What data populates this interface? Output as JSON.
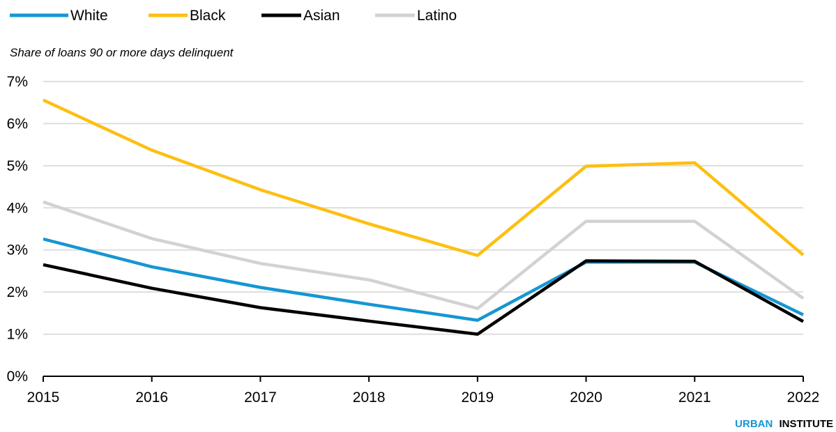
{
  "colors": {
    "White": "#1696d2",
    "Black": "#fdbf11",
    "Asian": "#000000",
    "Latino": "#d2d2d2",
    "grid": "#dedede",
    "axis": "#000000",
    "brand_accent": "#1696d2",
    "brand_text": "#000000"
  },
  "brand": {
    "part1": "URBAN",
    "part2": "INSTITUTE"
  },
  "chart_data": {
    "type": "line",
    "title": "",
    "subtitle": "Share of loans 90 or more days delinquent",
    "xlabel": "",
    "ylabel": "",
    "x": [
      "2015",
      "2016",
      "2017",
      "2018",
      "2019",
      "2020",
      "2021",
      "2022"
    ],
    "ylim": [
      0,
      7
    ],
    "yticks": [
      0,
      1,
      2,
      3,
      4,
      5,
      6,
      7
    ],
    "ytick_labels": [
      "0%",
      "1%",
      "2%",
      "3%",
      "4%",
      "5%",
      "6%",
      "7%"
    ],
    "grid": true,
    "legend_position": "top-left",
    "series": [
      {
        "name": "White",
        "values": [
          3.26,
          2.6,
          2.11,
          1.71,
          1.33,
          2.71,
          2.71,
          1.46
        ]
      },
      {
        "name": "Black",
        "values": [
          6.56,
          5.37,
          4.43,
          3.62,
          2.87,
          4.99,
          5.07,
          2.88
        ]
      },
      {
        "name": "Asian",
        "values": [
          2.65,
          2.09,
          1.63,
          1.31,
          1.0,
          2.74,
          2.73,
          1.3
        ]
      },
      {
        "name": "Latino",
        "values": [
          4.14,
          3.27,
          2.68,
          2.29,
          1.61,
          3.68,
          3.68,
          1.85
        ]
      }
    ]
  }
}
